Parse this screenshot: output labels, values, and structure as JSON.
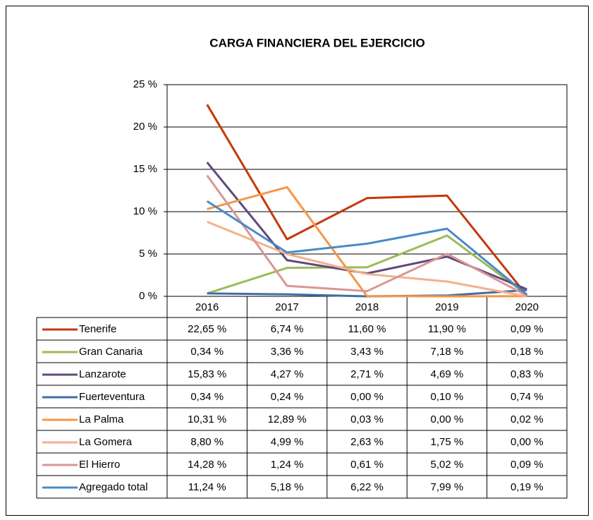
{
  "chart_data": {
    "type": "line",
    "title": "CARGA FINANCIERA DEL EJERCICIO",
    "categories": [
      "2016",
      "2017",
      "2018",
      "2019",
      "2020"
    ],
    "ylim": [
      0,
      25
    ],
    "yticks": [
      {
        "value": 0,
        "label": "0 %"
      },
      {
        "value": 5,
        "label": "5 %"
      },
      {
        "value": 10,
        "label": "10 %"
      },
      {
        "value": 15,
        "label": "15 %"
      },
      {
        "value": 20,
        "label": "20 %"
      },
      {
        "value": 25,
        "label": "25 %"
      }
    ],
    "grid": true,
    "series": [
      {
        "name": "Tenerife",
        "color": "#c4390a",
        "values": [
          22.65,
          6.74,
          11.6,
          11.9,
          0.09
        ],
        "value_labels": [
          "22,65 %",
          "6,74 %",
          "11,60 %",
          "11,90 %",
          "0,09 %"
        ]
      },
      {
        "name": "Gran Canaria",
        "color": "#9bbb59",
        "values": [
          0.34,
          3.36,
          3.43,
          7.18,
          0.18
        ],
        "value_labels": [
          "0,34 %",
          "3,36 %",
          "3,43 %",
          "7,18 %",
          "0,18 %"
        ]
      },
      {
        "name": "Lanzarote",
        "color": "#60497b",
        "values": [
          15.83,
          4.27,
          2.71,
          4.69,
          0.83
        ],
        "value_labels": [
          "15,83 %",
          "4,27 %",
          "2,71 %",
          "4,69 %",
          "0,83 %"
        ]
      },
      {
        "name": "Fuerteventura",
        "color": "#3f6fa8",
        "values": [
          0.34,
          0.24,
          0.0,
          0.1,
          0.74
        ],
        "value_labels": [
          "0,34 %",
          "0,24 %",
          "0,00 %",
          "0,10 %",
          "0,74 %"
        ]
      },
      {
        "name": "La Palma",
        "color": "#f79646",
        "values": [
          10.31,
          12.89,
          0.03,
          0.0,
          0.02
        ],
        "value_labels": [
          "10,31 %",
          "12,89 %",
          "0,03 %",
          "0,00 %",
          "0,02 %"
        ]
      },
      {
        "name": "La Gomera",
        "color": "#f5b08c",
        "values": [
          8.8,
          4.99,
          2.63,
          1.75,
          0.0
        ],
        "value_labels": [
          "8,80 %",
          "4,99 %",
          "2,63 %",
          "1,75 %",
          "0,00 %"
        ]
      },
      {
        "name": "El Hierro",
        "color": "#d99694",
        "values": [
          14.28,
          1.24,
          0.61,
          5.02,
          0.09
        ],
        "value_labels": [
          "14,28 %",
          "1,24 %",
          "0,61 %",
          "5,02 %",
          "0,09 %"
        ]
      },
      {
        "name": "Agregado total",
        "color": "#4a8ac6",
        "values": [
          11.24,
          5.18,
          6.22,
          7.99,
          0.19
        ],
        "value_labels": [
          "11,24 %",
          "5,18 %",
          "6,22 %",
          "7,99 %",
          "0,19 %"
        ]
      }
    ]
  }
}
